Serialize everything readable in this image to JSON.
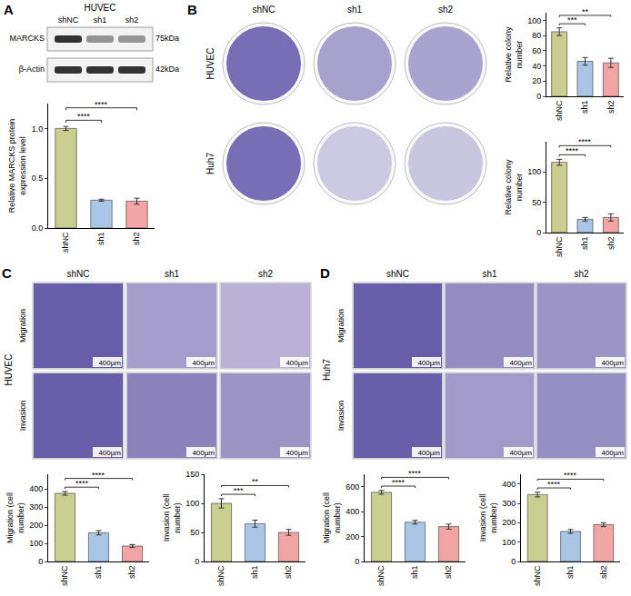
{
  "chart_data": [
    {
      "type": "bar",
      "ylabel": "Relative MARCKS protein expression level",
      "categories": [
        "shNC",
        "sh1",
        "sh2"
      ],
      "values": [
        1.0,
        0.28,
        0.27
      ],
      "errors": [
        0.02,
        0.01,
        0.03
      ],
      "colors": [
        "#c9cf8f",
        "#a9c6e6",
        "#f2a5a5"
      ],
      "ylim": [
        0,
        1.25
      ],
      "yticks": [
        {
          "value": 0,
          "label": "0.0"
        },
        {
          "value": 0.5,
          "label": "0.5"
        },
        {
          "value": 1,
          "label": "1.0"
        }
      ],
      "grid": false,
      "annotations": [
        {
          "from": "shNC",
          "to": "sh1",
          "label": "****"
        },
        {
          "from": "shNC",
          "to": "sh2",
          "label": "****"
        }
      ]
    },
    {
      "type": "bar",
      "ylabel": "Relative colony number",
      "categories": [
        "shNC",
        "sh1",
        "sh2"
      ],
      "values": [
        85,
        46,
        44
      ],
      "errors": [
        5,
        5,
        6
      ],
      "colors": [
        "#c9cf8f",
        "#a9c6e6",
        "#f2a5a5"
      ],
      "ylim": [
        0,
        110
      ],
      "yticks": [
        0,
        20,
        40,
        60,
        80,
        100
      ],
      "grid": false,
      "annotations": [
        {
          "from": "shNC",
          "to": "sh1",
          "label": "***"
        },
        {
          "from": "shNC",
          "to": "sh2",
          "label": "**"
        }
      ]
    },
    {
      "type": "bar",
      "ylabel": "Relative colony number",
      "categories": [
        "shNC",
        "sh1",
        "sh2"
      ],
      "values": [
        116,
        22,
        25
      ],
      "errors": [
        5,
        3,
        6
      ],
      "colors": [
        "#c9cf8f",
        "#a9c6e6",
        "#f2a5a5"
      ],
      "ylim": [
        0,
        150
      ],
      "yticks": [
        0,
        50,
        100
      ],
      "grid": false,
      "annotations": [
        {
          "from": "shNC",
          "to": "sh1",
          "label": "****"
        },
        {
          "from": "shNC",
          "to": "sh2",
          "label": "****"
        }
      ]
    },
    {
      "type": "bar",
      "ylabel": "Migration (cell number)",
      "categories": [
        "shNC",
        "sh1",
        "sh2"
      ],
      "values": [
        375,
        158,
        85
      ],
      "errors": [
        10,
        12,
        8
      ],
      "colors": [
        "#c9cf8f",
        "#a9c6e6",
        "#f2a5a5"
      ],
      "ylim": [
        0,
        480
      ],
      "yticks": [
        0,
        100,
        200,
        300,
        400
      ],
      "grid": false,
      "annotations": [
        {
          "from": "shNC",
          "to": "sh1",
          "label": "****"
        },
        {
          "from": "shNC",
          "to": "sh2",
          "label": "****"
        }
      ]
    },
    {
      "type": "bar",
      "ylabel": "Invasion (cell number)",
      "categories": [
        "shNC",
        "sh1",
        "sh2"
      ],
      "values": [
        100,
        65,
        50
      ],
      "errors": [
        8,
        6,
        5
      ],
      "colors": [
        "#c9cf8f",
        "#a9c6e6",
        "#f2a5a5"
      ],
      "ylim": [
        0,
        150
      ],
      "yticks": [
        0,
        50,
        100,
        150
      ],
      "grid": false,
      "annotations": [
        {
          "from": "shNC",
          "to": "sh1",
          "label": "***"
        },
        {
          "from": "shNC",
          "to": "sh2",
          "label": "**"
        }
      ]
    },
    {
      "type": "bar",
      "ylabel": "Migration (cell number)",
      "categories": [
        "shNC",
        "sh1",
        "sh2"
      ],
      "values": [
        555,
        315,
        280
      ],
      "errors": [
        15,
        15,
        20
      ],
      "colors": [
        "#c9cf8f",
        "#a9c6e6",
        "#f2a5a5"
      ],
      "ylim": [
        0,
        700
      ],
      "yticks": [
        0,
        200,
        400,
        600
      ],
      "grid": false,
      "annotations": [
        {
          "from": "shNC",
          "to": "sh1",
          "label": "****"
        },
        {
          "from": "shNC",
          "to": "sh2",
          "label": "****"
        }
      ]
    },
    {
      "type": "bar",
      "ylabel": "Invasion (cell number)",
      "categories": [
        "shNC",
        "sh1",
        "sh2"
      ],
      "values": [
        345,
        155,
        190
      ],
      "errors": [
        12,
        10,
        10
      ],
      "colors": [
        "#c9cf8f",
        "#a9c6e6",
        "#f2a5a5"
      ],
      "ylim": [
        0,
        450
      ],
      "yticks": [
        0,
        100,
        200,
        300,
        400
      ],
      "grid": false,
      "annotations": [
        {
          "from": "shNC",
          "to": "sh1",
          "label": "****"
        },
        {
          "from": "shNC",
          "to": "sh2",
          "label": "****"
        }
      ]
    }
  ],
  "panels": [
    {
      "letter": "A",
      "title": "HUVEC",
      "groups": [
        "shNC",
        "sh1",
        "sh2"
      ],
      "blot": [
        {
          "protein": "MARCKS",
          "size": "75kDa"
        },
        {
          "protein": "β-Actin",
          "size": "42kDa"
        }
      ]
    },
    {
      "letter": "B",
      "groups": [
        "shNC",
        "sh1",
        "sh2"
      ],
      "rows": [
        "HUVEC",
        "Huh7"
      ]
    },
    {
      "letter": "C",
      "cell_line": "HUVEC",
      "groups": [
        "shNC",
        "sh1",
        "sh2"
      ],
      "rows": [
        "Migration",
        "Invasion"
      ],
      "scale_bar": "400µm"
    },
    {
      "letter": "D",
      "cell_line": "Huh7",
      "groups": [
        "shNC",
        "sh1",
        "sh2"
      ],
      "rows": [
        "Migration",
        "Invasion"
      ],
      "scale_bar": "400µm"
    }
  ]
}
